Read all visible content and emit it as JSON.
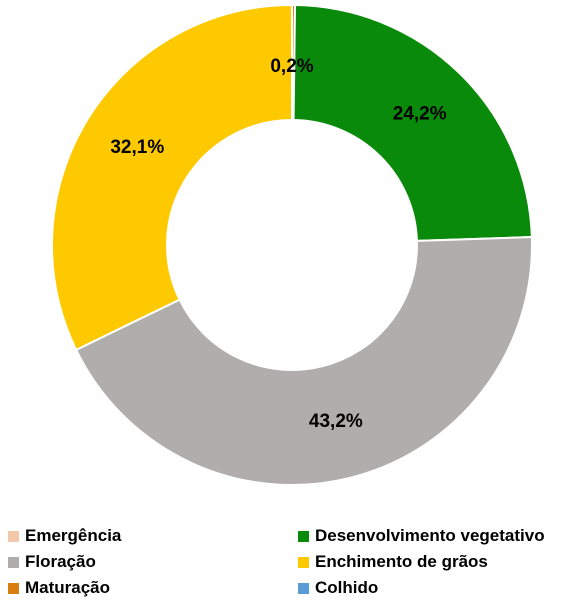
{
  "chart_data": {
    "type": "pie",
    "donut": true,
    "title": "",
    "slices": [
      {
        "name": "Emergência",
        "value": 0.0,
        "label": "",
        "color": "#f4c7a8"
      },
      {
        "name": "Desenvolvimento vegetativo",
        "value": 24.2,
        "label": "24,2%",
        "color": "#0a8a0a"
      },
      {
        "name": "Floração",
        "value": 43.2,
        "label": "43,2%",
        "color": "#b0adad"
      },
      {
        "name": "Enchimento de grãos",
        "value": 32.1,
        "label": "32,1%",
        "color": "#ffc900"
      },
      {
        "name": "Maturação",
        "value": 0.2,
        "label": "0,2%",
        "color": "#d97e0e"
      },
      {
        "name": "Colhido",
        "value": 0.0,
        "label": "",
        "color": "#5b9bd5"
      }
    ],
    "legend_position": "bottom"
  },
  "legend": [
    {
      "label": "Emergência",
      "color": "#f4c7a8"
    },
    {
      "label": "Desenvolvimento vegetativo",
      "color": "#0a8a0a"
    },
    {
      "label": "Floração",
      "color": "#b0adad"
    },
    {
      "label": "Enchimento de grãos",
      "color": "#ffc900"
    },
    {
      "label": "Maturação",
      "color": "#d97e0e"
    },
    {
      "label": "Colhido",
      "color": "#5b9bd5"
    }
  ]
}
